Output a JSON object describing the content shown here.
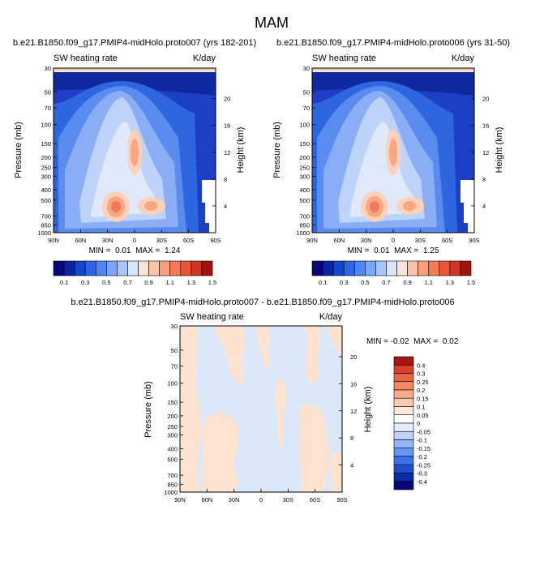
{
  "figure_title": "MAM",
  "chart_data": [
    {
      "type": "heatmap",
      "title": "b.e21.B1850.f09_g17.PMIP4-midHolo.proto007 (yrs 182-201)",
      "left_label": "SW heating rate",
      "right_label": "K/day",
      "ylabel": "Pressure (mb)",
      "ylabel_right": "Height (km)",
      "x_ticks": [
        "90N",
        "60N",
        "30N",
        "0",
        "30S",
        "60S",
        "90S"
      ],
      "y_ticks": [
        "30",
        "50",
        "70",
        "100",
        "150",
        "200",
        "250",
        "300",
        "400",
        "500",
        "700",
        "850",
        "1000"
      ],
      "y_right_ticks": [
        "20",
        "16",
        "12",
        "8",
        "4"
      ],
      "min_text": "MIN =  0.01  MAX =  1.24",
      "min": 0.01,
      "max": 1.24,
      "colorbar_labels": [
        "0.1",
        "0.3",
        "0.5",
        "0.7",
        "0.9",
        "1.1",
        "1.3",
        "1.5"
      ]
    },
    {
      "type": "heatmap",
      "title": "b.e21.B1850.f09_g17.PMIP4-midHolo.proto006 (yrs 31-50)",
      "left_label": "SW heating rate",
      "right_label": "K/day",
      "ylabel": "Pressure (mb)",
      "ylabel_right": "Height (km)",
      "x_ticks": [
        "90N",
        "60N",
        "30N",
        "0",
        "30S",
        "60S",
        "90S"
      ],
      "y_ticks": [
        "30",
        "50",
        "70",
        "100",
        "150",
        "200",
        "250",
        "300",
        "400",
        "500",
        "700",
        "850",
        "1000"
      ],
      "y_right_ticks": [
        "20",
        "16",
        "12",
        "8",
        "4"
      ],
      "min_text": "MIN =  0.01  MAX =  1.25",
      "min": 0.01,
      "max": 1.25,
      "colorbar_labels": [
        "0.1",
        "0.3",
        "0.5",
        "0.7",
        "0.9",
        "1.1",
        "1.3",
        "1.5"
      ]
    },
    {
      "type": "heatmap",
      "title": "b.e21.B1850.f09_g17.PMIP4-midHolo.proto007 - b.e21.B1850.f09_g17.PMIP4-midHolo.proto006",
      "left_label": "SW heating rate",
      "right_label": "K/day",
      "ylabel": "Pressure (mb)",
      "ylabel_right": "Height (km)",
      "x_ticks": [
        "90N",
        "60N",
        "30N",
        "0",
        "30S",
        "60S",
        "90S"
      ],
      "y_ticks": [
        "30",
        "50",
        "70",
        "100",
        "150",
        "200",
        "250",
        "300",
        "400",
        "500",
        "700",
        "850",
        "1000"
      ],
      "y_right_ticks": [
        "20",
        "16",
        "12",
        "8",
        "4"
      ],
      "min_text": "MIN = -0.02  MAX =  0.02",
      "min": -0.02,
      "max": 0.02,
      "colorbar_labels": [
        "0.4",
        "0.3",
        "0.25",
        "0.2",
        "0.15",
        "0.1",
        "0.05",
        "0",
        "-0.05",
        "-0.1",
        "-0.15",
        "-0.2",
        "-0.25",
        "-0.3",
        "-0.4"
      ]
    }
  ],
  "colors": {
    "abs_scale": [
      "#08087a",
      "#0a24a8",
      "#1447cc",
      "#2a66e6",
      "#4d86f2",
      "#79a6f6",
      "#a8c6f9",
      "#d8e6fb",
      "#fbe4d6",
      "#fbc4a6",
      "#f8a07c",
      "#f47b57",
      "#eb5638",
      "#d13421",
      "#a0140e"
    ],
    "diff_scale": [
      "#08087a",
      "#0c2aa6",
      "#1c4fd0",
      "#3a72ec",
      "#6495f3",
      "#92b6f7",
      "#bdd3fa",
      "#e2edfc",
      "#fde7d8",
      "#fbcab0",
      "#f8a98a",
      "#f38866",
      "#ea6444",
      "#d93f26",
      "#a8150e"
    ],
    "diff_neg_fill": "#dbe8f9",
    "diff_pos_fill": "#fde3cf"
  }
}
